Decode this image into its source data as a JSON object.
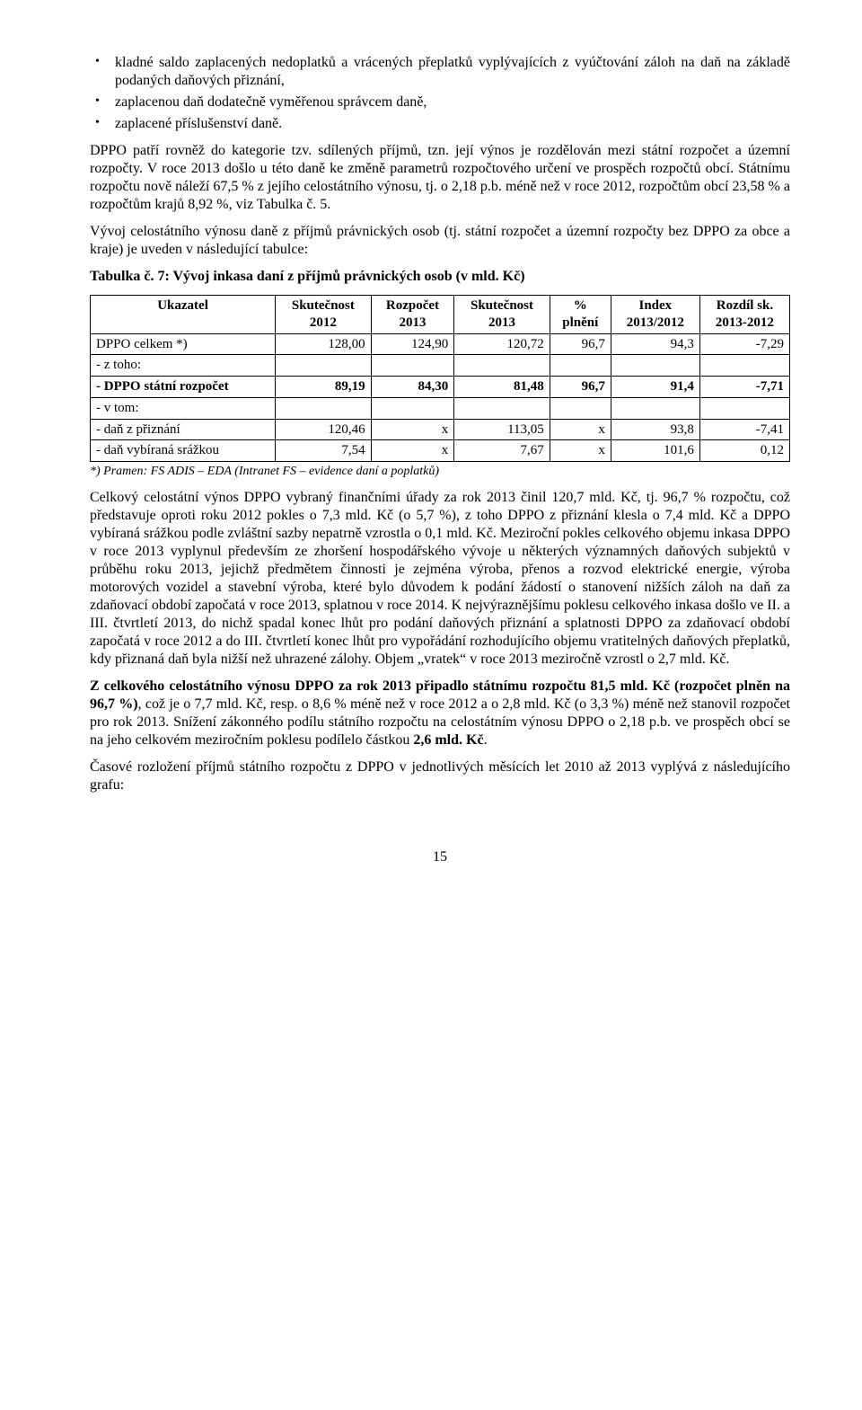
{
  "bullets": [
    "kladné saldo zaplacených nedoplatků a vrácených přeplatků vyplývajících z vyúčtování záloh na daň na základě podaných daňových přiznání,",
    "zaplacenou daň dodatečně vyměřenou správcem daně,",
    "zaplacené příslušenství daně."
  ],
  "para1": "DPPO patří rovněž do kategorie tzv. sdílených příjmů, tzn. její výnos je rozdělován mezi státní rozpočet a územní rozpočty. V roce 2013 došlo u této daně ke změně parametrů rozpočtového určení ve prospěch rozpočtů obcí. Státnímu rozpočtu nově náleží 67,5 % z jejího celostátního výnosu, tj. o 2,18 p.b. méně než v roce 2012, rozpočtům obcí 23,58 % a rozpočtům krajů 8,92 %, viz Tabulka č. 5.",
  "para2": "Vývoj celostátního výnosu daně z příjmů právnických osob (tj. státní rozpočet a územní rozpočty bez DPPO za obce a kraje) je uveden v následující tabulce:",
  "table_caption": "Tabulka č. 7: Vývoj inkasa daní z příjmů právnických osob (v mld. Kč)",
  "table": {
    "headers": {
      "c1a": "Ukazatel",
      "c1b": "",
      "c2a": "Skutečnost",
      "c2b": "2012",
      "c3a": "Rozpočet",
      "c3b": "2013",
      "c4a": "Skutečnost",
      "c4b": "2013",
      "c5a": "%",
      "c5b": "plnění",
      "c6a": "Index",
      "c6b": "2013/2012",
      "c7a": "Rozdíl sk.",
      "c7b": "2013-2012"
    },
    "rows": [
      {
        "label": "DPPO celkem *)",
        "v": [
          "128,00",
          "124,90",
          "120,72",
          "96,7",
          "94,3",
          "-7,29"
        ]
      },
      {
        "label": " - z toho:",
        "v": [
          "",
          "",
          "",
          "",
          "",
          ""
        ]
      },
      {
        "label": "   - DPPO státní rozpočet",
        "bold": true,
        "v": [
          "89,19",
          "84,30",
          "81,48",
          "96,7",
          "91,4",
          "-7,71"
        ]
      },
      {
        "label": " - v tom:",
        "v": [
          "",
          "",
          "",
          "",
          "",
          ""
        ]
      },
      {
        "label": "   - daň z přiznání",
        "v": [
          "120,46",
          "x",
          "113,05",
          "x",
          "93,8",
          "-7,41"
        ]
      },
      {
        "label": "   - daň vybíraná srážkou",
        "v": [
          "7,54",
          "x",
          "7,67",
          "x",
          "101,6",
          "0,12"
        ]
      }
    ]
  },
  "footnote": "*) Pramen: FS ADIS – EDA (Intranet FS – evidence daní a poplatků)",
  "para3": "Celkový celostátní výnos DPPO vybraný finančními úřady za rok 2013 činil 120,7 mld. Kč, tj. 96,7 % rozpočtu, což představuje oproti roku 2012 pokles o 7,3 mld. Kč (o 5,7 %), z toho DPPO z přiznání klesla o 7,4 mld. Kč a DPPO vybíraná srážkou podle zvláštní sazby nepatrně vzrostla o 0,1 mld. Kč. Meziroční pokles celkového objemu inkasa DPPO v roce 2013 vyplynul především ze zhoršení hospodářského vývoje u některých významných daňových subjektů v průběhu roku 2013, jejichž předmětem činnosti je zejména výroba, přenos a rozvod elektrické energie, výroba motorových vozidel a stavební výroba, které bylo důvodem k podání žádostí o stanovení nižších záloh na daň za zdaňovací období započatá v roce 2013, splatnou v roce 2014. K nejvýraznějšímu poklesu celkového inkasa došlo ve II. a III. čtvrtletí 2013, do nichž spadal konec lhůt pro podání daňových přiznání a splatnosti DPPO za zdaňovací období započatá v roce 2012 a do III. čtvrtletí konec lhůt pro vypořádání rozhodujícího objemu vratitelných daňových přeplatků, kdy přiznaná daň byla nižší než uhrazené zálohy. Objem „vratek“ v roce 2013 meziročně vzrostl o 2,7 mld. Kč.",
  "para4a": "Z celkového celostátního výnosu DPPO za rok 2013 připadlo státnímu rozpočtu 81,5 mld. Kč (rozpočet plněn na 96,7 %)",
  "para4b": ", což je o 7,7 mld. Kč, resp. o 8,6 % méně než v roce 2012 a o 2,8 mld. Kč (o 3,3 %) méně než stanovil rozpočet pro rok 2013. Snížení zákonného podílu státního rozpočtu na celostátním výnosu DPPO o 2,18 p.b. ve prospěch obcí se na jeho celkovém meziročním poklesu podílelo částkou ",
  "para4c": "2,6 mld. Kč",
  "para4d": ".",
  "para5": "Časové rozložení příjmů státního rozpočtu z DPPO v jednotlivých měsících let 2010 až 2013 vyplývá z následujícího grafu:",
  "page_number": "15"
}
